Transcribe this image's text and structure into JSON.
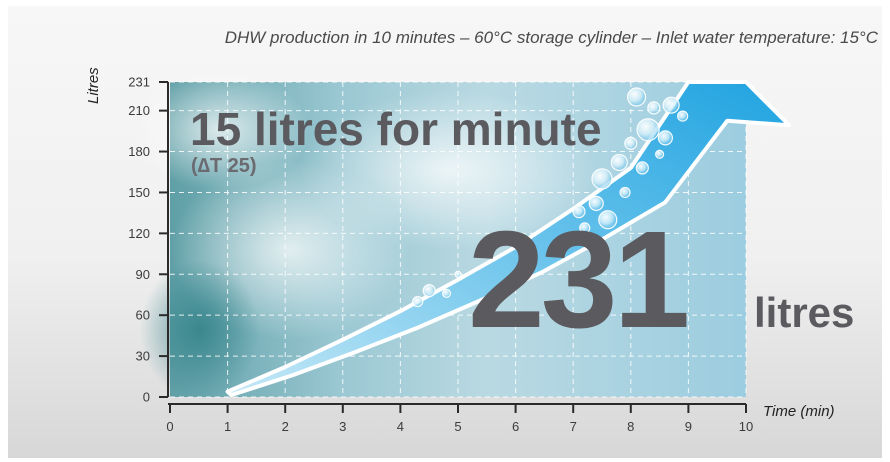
{
  "title": "DHW production in 10 minutes – 60°C storage cylinder – Inlet water temperature: 15°C",
  "headline": {
    "rate": "15 litres for minute",
    "delta": "(∆T 25)",
    "total_value": "231",
    "total_unit": "litres"
  },
  "chart_data": {
    "type": "area",
    "title": "DHW production in 10 minutes – 60°C storage cylinder – Inlet water temperature: 15°C",
    "xlabel": "Time (min)",
    "ylabel": "Litres",
    "xlim": [
      0,
      10
    ],
    "ylim": [
      0,
      231
    ],
    "x_ticks": [
      0,
      1,
      2,
      3,
      4,
      5,
      6,
      7,
      8,
      9,
      10
    ],
    "y_ticks": [
      0,
      30,
      60,
      90,
      120,
      150,
      180,
      210,
      231
    ],
    "grid": true,
    "series": [
      {
        "x": [
          1,
          2,
          3,
          4,
          5,
          6,
          7,
          8,
          9,
          10
        ],
        "values": [
          4,
          22,
          42,
          63,
          86,
          110,
          138,
          168,
          231,
          231
        ]
      }
    ],
    "colors": {
      "plot_background": "#9cc8d8",
      "band": "#3aaee0",
      "band_edge": "#ffffff",
      "grid": "#ffffff",
      "text": "#5a5a5f"
    }
  }
}
